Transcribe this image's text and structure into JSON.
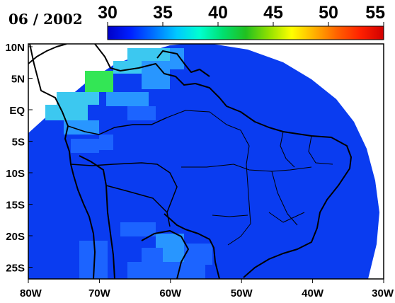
{
  "map": {
    "date": "06 / 2002",
    "colorbar": {
      "ticks": [
        "30",
        "35",
        "40",
        "45",
        "50",
        "55"
      ],
      "tick_values": [
        30,
        35,
        40,
        45,
        50,
        55
      ],
      "range": [
        30,
        55
      ],
      "colors": [
        "#0000c8",
        "#0020ff",
        "#0070ff",
        "#00c8ff",
        "#00ffd0",
        "#00e070",
        "#20c020",
        "#90e000",
        "#ffff00",
        "#ffb000",
        "#ff6000",
        "#ff2000",
        "#d00000"
      ]
    },
    "lon_labels": [
      "80W",
      "70W",
      "60W",
      "50W",
      "40W",
      "30W"
    ],
    "lat_labels": [
      "10N",
      "5N",
      "EQ",
      "5S",
      "10S",
      "15S",
      "20S",
      "25S"
    ],
    "field_colors": {
      "background_value": "#0a3cf0",
      "cyan_cells": "#3cc8f0",
      "green_cells": "#33e655",
      "mid_blue_cells": "#1c64ff",
      "light_blue_cells": "#2896ff"
    },
    "land_line_color": "#000000"
  }
}
